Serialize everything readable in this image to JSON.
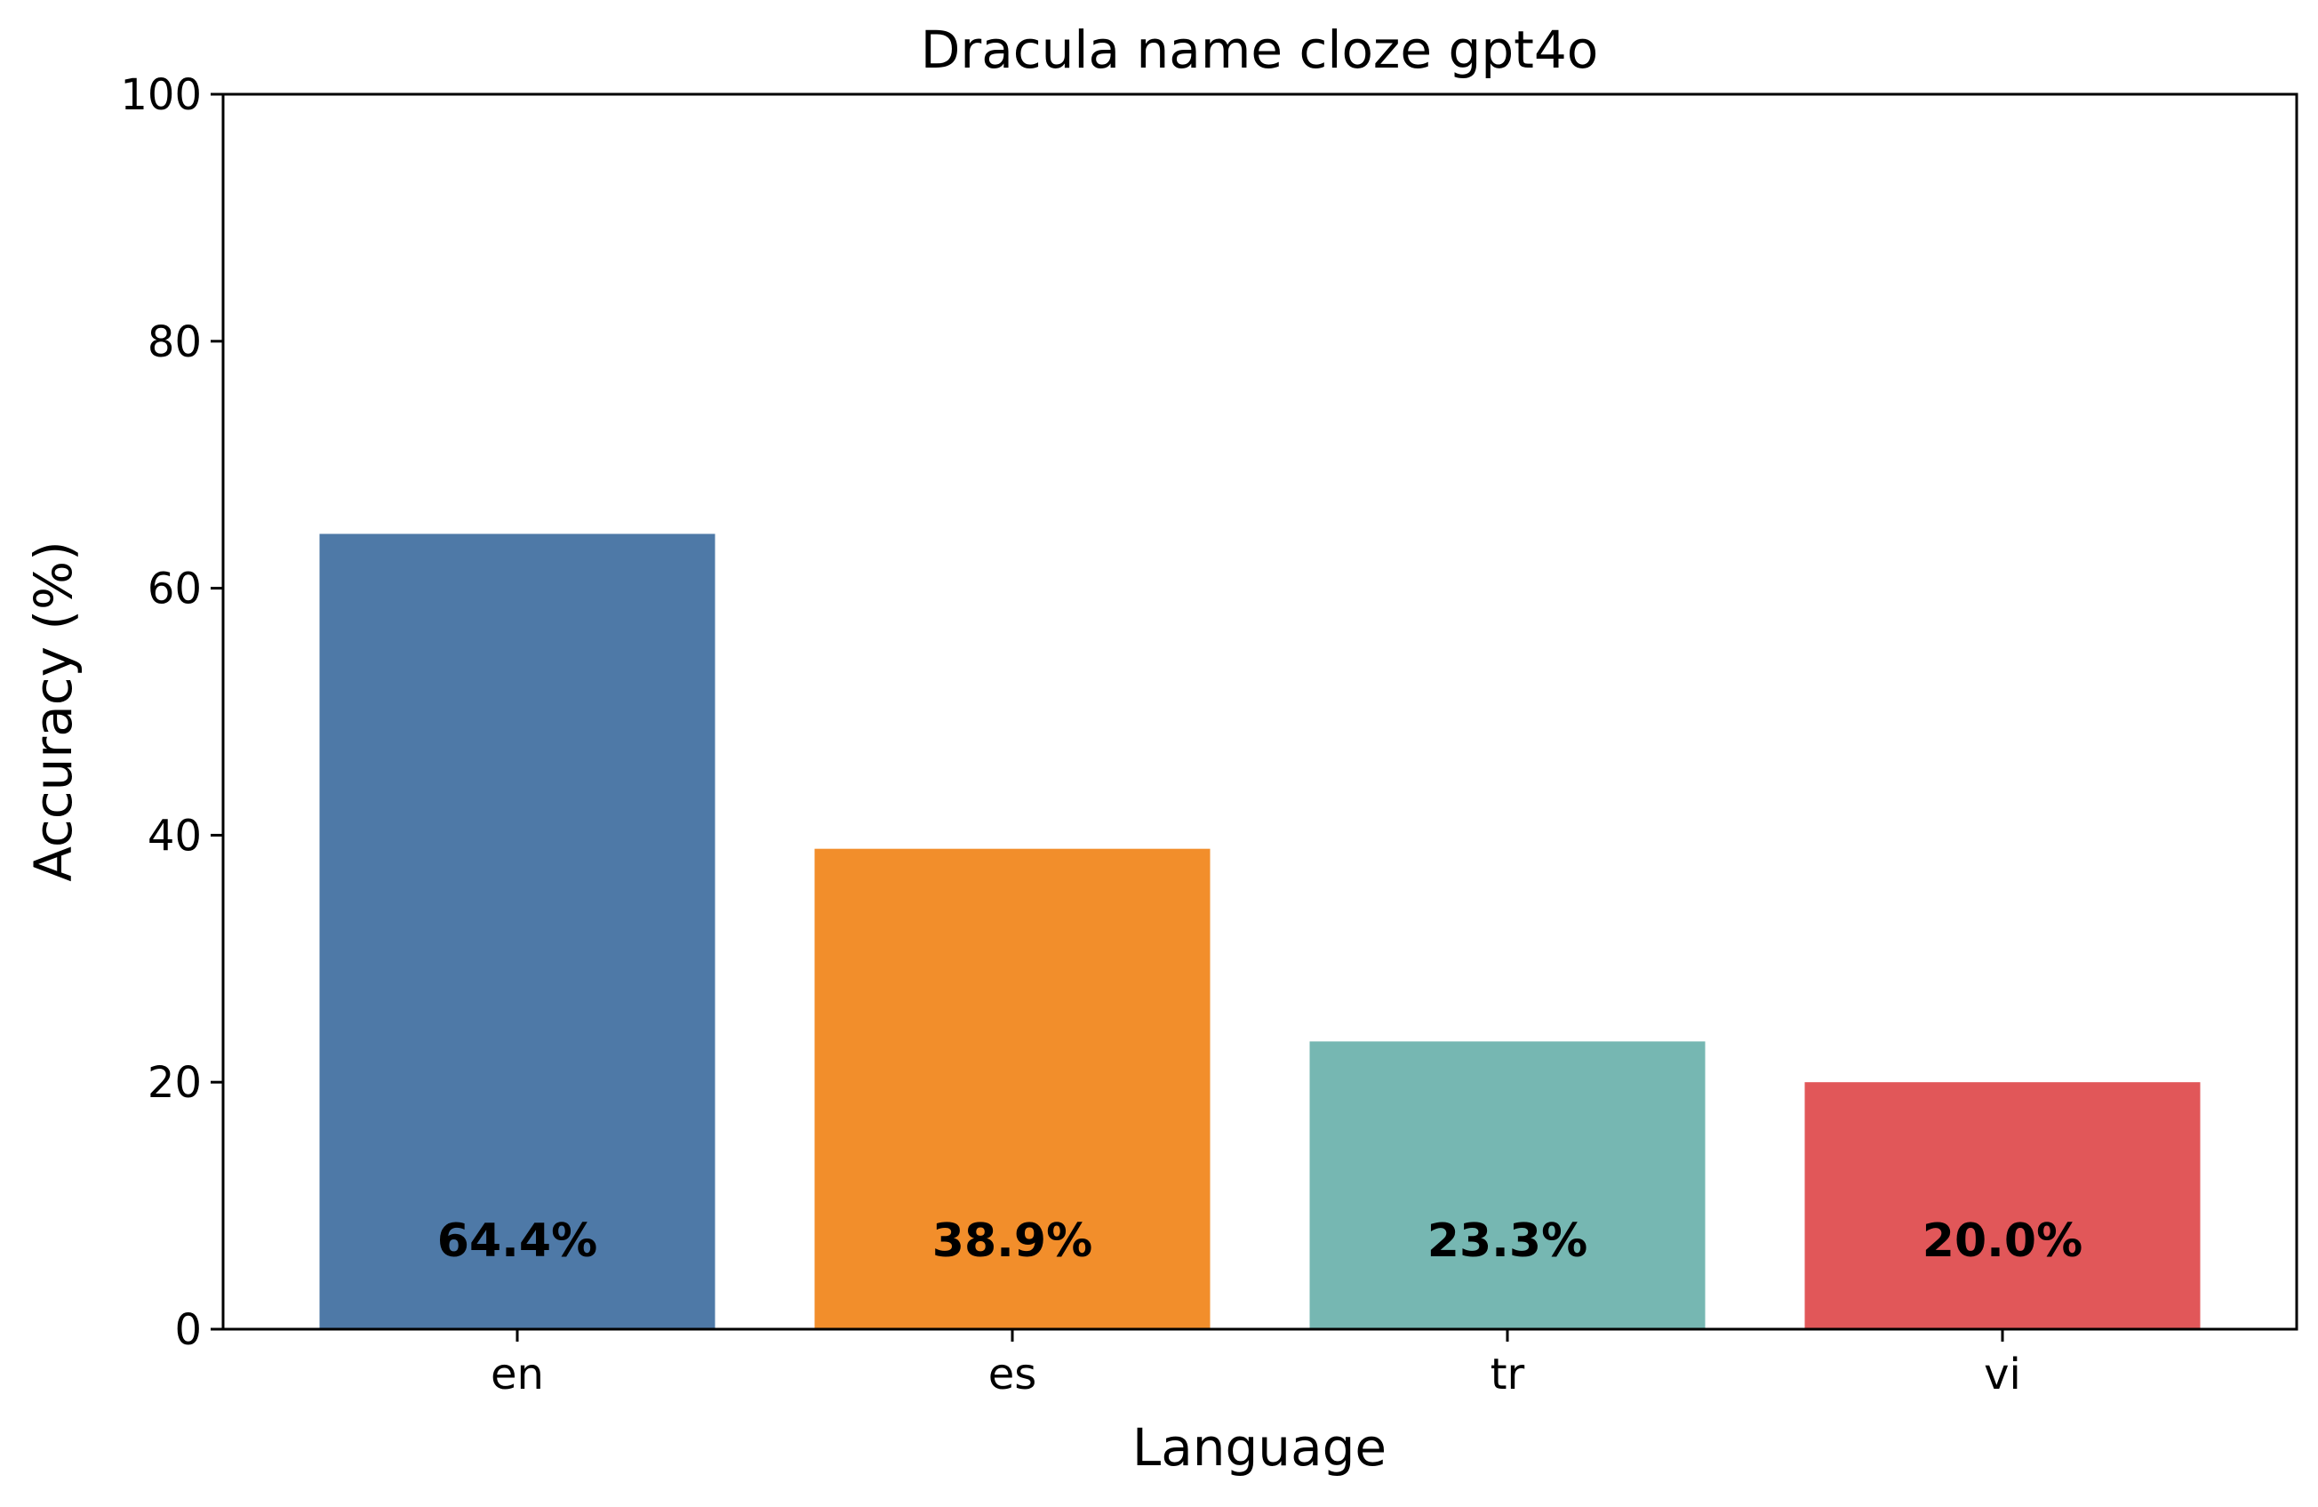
{
  "chart_data": {
    "type": "bar",
    "title": "Dracula name cloze gpt4o",
    "xlabel": "Language",
    "ylabel": "Accuracy (%)",
    "categories": [
      "en",
      "es",
      "tr",
      "vi"
    ],
    "values": [
      64.4,
      38.9,
      23.3,
      20.0
    ],
    "value_labels": [
      "64.4%",
      "38.9%",
      "23.3%",
      "20.0%"
    ],
    "colors": [
      "#4e79a7",
      "#f28e2b",
      "#76b7b2",
      "#e15759"
    ],
    "ylim": [
      0,
      100
    ],
    "yticks": [
      0,
      20,
      40,
      60,
      80,
      100
    ],
    "grid": false,
    "legend": "none"
  }
}
